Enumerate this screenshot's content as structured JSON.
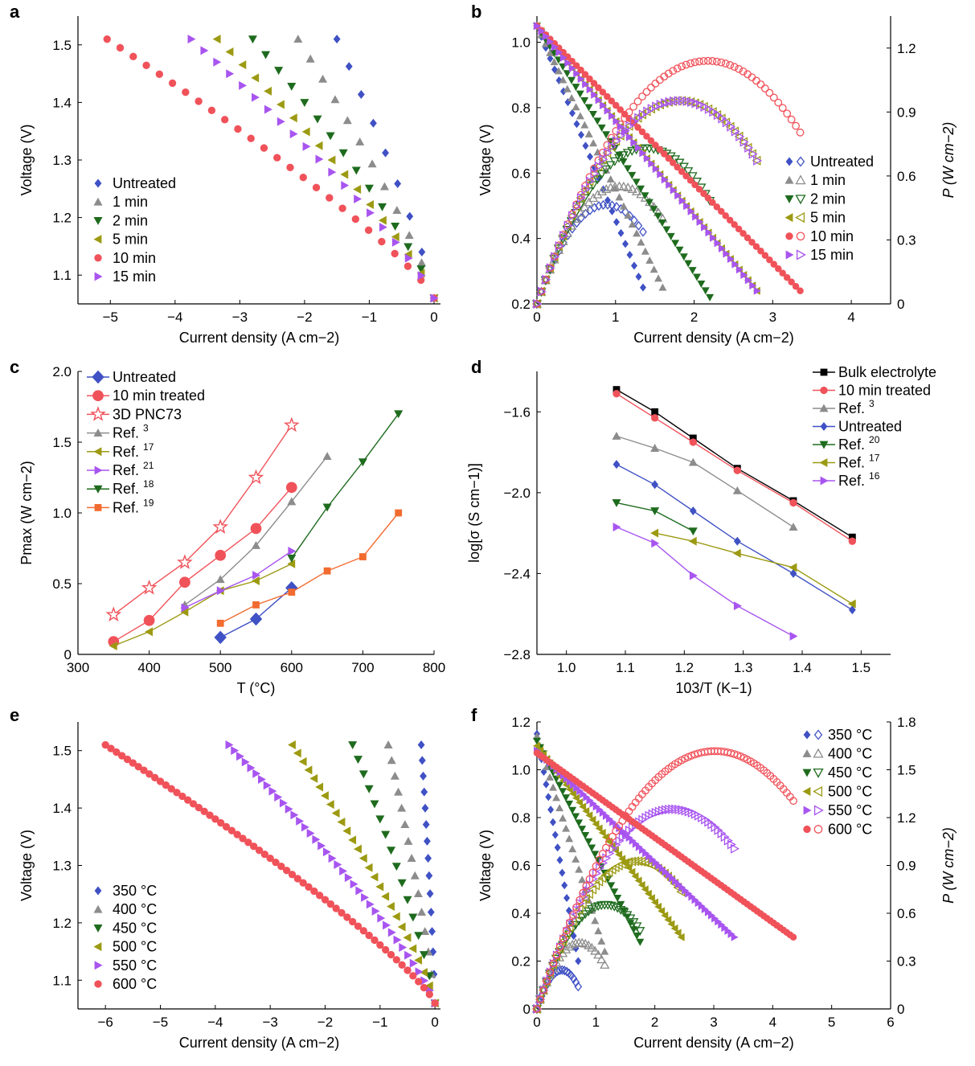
{
  "chart_data": [
    {
      "panel": "a",
      "type": "scatter",
      "xlabel": "Current density (A cm−2)",
      "ylabel": "Voltage (V)",
      "xlim": [
        -5.5,
        0.1
      ],
      "ylim": [
        1.05,
        1.55
      ],
      "xticks": [
        -5,
        -4,
        -3,
        -2,
        -1,
        0
      ],
      "yticks": [
        1.1,
        1.2,
        1.3,
        1.4,
        1.5
      ],
      "legend_position": "lower-left",
      "series": [
        {
          "name": "Untreated",
          "color": "#3f51c4",
          "marker": "diamond",
          "x_end": -1.5
        },
        {
          "name": "1 min",
          "color": "#8c8c8c",
          "marker": "triangle-up",
          "x_end": -2.1
        },
        {
          "name": "2 min",
          "color": "#1e6b1e",
          "marker": "triangle-down",
          "x_end": -2.8
        },
        {
          "name": "5 min",
          "color": "#9c9a12",
          "marker": "triangle-left",
          "x_end": -3.35
        },
        {
          "name": "10 min",
          "color": "#f0525a",
          "marker": "circle",
          "x_end": -5.05
        },
        {
          "name": "15 min",
          "color": "#a855f0",
          "marker": "triangle-right",
          "x_end": -3.75
        }
      ]
    },
    {
      "panel": "b",
      "type": "scatter",
      "xlabel": "Current density (A cm−2)",
      "ylabel": "Voltage (V)",
      "y2label": "P (W cm−2)",
      "xlim": [
        0,
        4.5
      ],
      "ylim": [
        0.2,
        1.08
      ],
      "y2lim": [
        0,
        1.35
      ],
      "xticks": [
        0,
        1,
        2,
        3,
        4
      ],
      "yticks": [
        0.2,
        0.4,
        0.6,
        0.8,
        1.0
      ],
      "y2ticks": [
        0,
        0.3,
        0.6,
        0.9,
        1.2
      ],
      "legend_position": "right",
      "series": [
        {
          "name": "Untreated",
          "color": "#3f51c4",
          "marker": "diamond",
          "ocv": 1.05,
          "v_end": 0.25,
          "x_end": 1.35
        },
        {
          "name": "1 min",
          "color": "#8c8c8c",
          "marker": "triangle-up",
          "ocv": 1.05,
          "v_end": 0.25,
          "x_end": 1.6
        },
        {
          "name": "2 min",
          "color": "#1e6b1e",
          "marker": "triangle-down",
          "ocv": 1.05,
          "v_end": 0.22,
          "x_end": 2.2
        },
        {
          "name": "5 min",
          "color": "#9c9a12",
          "marker": "triangle-left",
          "ocv": 1.05,
          "v_end": 0.24,
          "x_end": 2.8
        },
        {
          "name": "10 min",
          "color": "#f0525a",
          "marker": "circle",
          "ocv": 1.05,
          "v_end": 0.24,
          "x_end": 3.35
        },
        {
          "name": "15 min",
          "color": "#a855f0",
          "marker": "triangle-right",
          "ocv": 1.05,
          "v_end": 0.24,
          "x_end": 2.8
        }
      ]
    },
    {
      "panel": "c",
      "type": "line",
      "xlabel": "T (°C)",
      "ylabel": "Pmax (W cm−2)",
      "xlim": [
        300,
        800
      ],
      "ylim": [
        0,
        2.0
      ],
      "xticks": [
        300,
        400,
        500,
        600,
        700,
        800
      ],
      "yticks": [
        0,
        0.5,
        1.0,
        1.5,
        2.0
      ],
      "legend_position": "top-left",
      "series": [
        {
          "name": "Untreated",
          "ref": "",
          "color": "#3f51c4",
          "marker": "diamond-lg",
          "x": [
            500,
            550,
            600
          ],
          "y": [
            0.12,
            0.25,
            0.47
          ]
        },
        {
          "name": "10 min treated",
          "ref": "",
          "color": "#f0525a",
          "marker": "circle-lg",
          "x": [
            350,
            400,
            450,
            500,
            550,
            600
          ],
          "y": [
            0.09,
            0.24,
            0.51,
            0.7,
            0.89,
            1.18
          ]
        },
        {
          "name": "3D PNC73",
          "ref": "",
          "color": "#f0525a",
          "marker": "star-open",
          "x": [
            350,
            400,
            450,
            500,
            550,
            600
          ],
          "y": [
            0.28,
            0.47,
            0.65,
            0.9,
            1.25,
            1.62
          ]
        },
        {
          "name": "Ref. ",
          "ref": "3",
          "color": "#8c8c8c",
          "marker": "triangle-up",
          "x": [
            450,
            500,
            550,
            600,
            650
          ],
          "y": [
            0.35,
            0.53,
            0.77,
            1.08,
            1.4
          ]
        },
        {
          "name": "Ref. ",
          "ref": "17",
          "color": "#9c9a12",
          "marker": "triangle-left",
          "x": [
            350,
            400,
            450,
            500,
            550,
            600
          ],
          "y": [
            0.06,
            0.16,
            0.3,
            0.45,
            0.52,
            0.64
          ]
        },
        {
          "name": "Ref. ",
          "ref": "21",
          "color": "#a855f0",
          "marker": "triangle-right",
          "x": [
            450,
            500,
            550,
            600
          ],
          "y": [
            0.33,
            0.45,
            0.56,
            0.73
          ]
        },
        {
          "name": "Ref. ",
          "ref": "18",
          "color": "#1e6b1e",
          "marker": "triangle-down",
          "x": [
            600,
            650,
            700,
            750
          ],
          "y": [
            0.68,
            1.04,
            1.36,
            1.7
          ]
        },
        {
          "name": "Ref. ",
          "ref": "19",
          "color": "#f26b30",
          "marker": "square",
          "x": [
            500,
            550,
            600,
            650,
            700,
            750
          ],
          "y": [
            0.22,
            0.35,
            0.44,
            0.59,
            0.69,
            1.0
          ]
        }
      ]
    },
    {
      "panel": "d",
      "type": "line",
      "xlabel": "103/T (K−1)",
      "ylabel": "log[σ (S cm−1)]",
      "xlim": [
        0.95,
        1.55
      ],
      "ylim": [
        -2.8,
        -1.4
      ],
      "xticks": [
        1.0,
        1.1,
        1.2,
        1.3,
        1.4,
        1.5
      ],
      "yticks": [
        -2.8,
        -2.4,
        -2.0,
        -1.6
      ],
      "legend_position": "top-right",
      "series": [
        {
          "name": "Bulk electrolyte",
          "ref": "",
          "color": "#000000",
          "marker": "square",
          "x": [
            1.085,
            1.15,
            1.215,
            1.29,
            1.385,
            1.485
          ],
          "y": [
            -1.49,
            -1.6,
            -1.73,
            -1.88,
            -2.04,
            -2.22
          ]
        },
        {
          "name": "10 min treated",
          "ref": "",
          "color": "#f0525a",
          "marker": "circle",
          "x": [
            1.085,
            1.15,
            1.215,
            1.29,
            1.385,
            1.485
          ],
          "y": [
            -1.51,
            -1.63,
            -1.75,
            -1.89,
            -2.05,
            -2.24
          ]
        },
        {
          "name": "Ref. ",
          "ref": "3",
          "color": "#8c8c8c",
          "marker": "triangle-up",
          "x": [
            1.085,
            1.15,
            1.215,
            1.29,
            1.385
          ],
          "y": [
            -1.72,
            -1.78,
            -1.85,
            -1.99,
            -2.17
          ]
        },
        {
          "name": "Untreated",
          "ref": "",
          "color": "#3f51c4",
          "marker": "diamond",
          "x": [
            1.085,
            1.15,
            1.215,
            1.29,
            1.385,
            1.485
          ],
          "y": [
            -1.86,
            -1.96,
            -2.09,
            -2.24,
            -2.4,
            -2.58
          ]
        },
        {
          "name": "Ref. ",
          "ref": "20",
          "color": "#1e6b1e",
          "marker": "triangle-down",
          "x": [
            1.085,
            1.15,
            1.215
          ],
          "y": [
            -2.05,
            -2.09,
            -2.19
          ]
        },
        {
          "name": "Ref. ",
          "ref": "17",
          "color": "#9c9a12",
          "marker": "triangle-left",
          "x": [
            1.15,
            1.215,
            1.29,
            1.385,
            1.485
          ],
          "y": [
            -2.2,
            -2.24,
            -2.3,
            -2.37,
            -2.55
          ]
        },
        {
          "name": "Ref. ",
          "ref": "16",
          "color": "#a855f0",
          "marker": "triangle-right",
          "x": [
            1.085,
            1.15,
            1.215,
            1.29,
            1.385
          ],
          "y": [
            -2.17,
            -2.25,
            -2.41,
            -2.56,
            -2.71
          ]
        }
      ]
    },
    {
      "panel": "e",
      "type": "scatter",
      "xlabel": "Current density (A cm−2)",
      "ylabel": "Voltage (V)",
      "xlim": [
        -6.5,
        0.1
      ],
      "ylim": [
        1.05,
        1.55
      ],
      "xticks": [
        -6,
        -5,
        -4,
        -3,
        -2,
        -1,
        0
      ],
      "yticks": [
        1.1,
        1.2,
        1.3,
        1.4,
        1.5
      ],
      "legend_position": "lower-left",
      "series": [
        {
          "name": "350 °C",
          "color": "#3f51c4",
          "marker": "diamond",
          "x_end": -0.25
        },
        {
          "name": "400 °C",
          "color": "#8c8c8c",
          "marker": "triangle-up",
          "x_end": -0.85
        },
        {
          "name": "450 °C",
          "color": "#1e6b1e",
          "marker": "triangle-down",
          "x_end": -1.5
        },
        {
          "name": "500 °C",
          "color": "#9c9a12",
          "marker": "triangle-left",
          "x_end": -2.6
        },
        {
          "name": "550 °C",
          "color": "#a855f0",
          "marker": "triangle-right",
          "x_end": -3.75
        },
        {
          "name": "600 °C",
          "color": "#f0525a",
          "marker": "circle",
          "x_end": -6.0
        }
      ]
    },
    {
      "panel": "f",
      "type": "scatter",
      "xlabel": "Current density (A  cm−2)",
      "ylabel": "Voltage (V)",
      "y2label": "P (W cm−2)",
      "xlim": [
        0,
        6
      ],
      "ylim": [
        0,
        1.2
      ],
      "y2lim": [
        0,
        1.8
      ],
      "xticks": [
        0,
        1,
        2,
        3,
        4,
        5,
        6
      ],
      "yticks": [
        0,
        0.2,
        0.4,
        0.6,
        0.8,
        1.0,
        1.2
      ],
      "y2ticks": [
        0,
        0.3,
        0.6,
        0.9,
        1.2,
        1.5,
        1.8
      ],
      "legend_position": "top-right",
      "series": [
        {
          "name": "350 °C",
          "color": "#3f51c4",
          "marker": "diamond",
          "ocv": 1.15,
          "v_end": 0.2,
          "x_end": 0.7
        },
        {
          "name": "400 °C",
          "color": "#8c8c8c",
          "marker": "triangle-up",
          "ocv": 1.14,
          "v_end": 0.24,
          "x_end": 1.15
        },
        {
          "name": "450 °C",
          "color": "#1e6b1e",
          "marker": "triangle-down",
          "ocv": 1.12,
          "v_end": 0.28,
          "x_end": 1.75
        },
        {
          "name": "500 °C",
          "color": "#9c9a12",
          "marker": "triangle-left",
          "ocv": 1.1,
          "v_end": 0.3,
          "x_end": 2.45
        },
        {
          "name": "550 °C",
          "color": "#a855f0",
          "marker": "triangle-right",
          "ocv": 1.08,
          "v_end": 0.3,
          "x_end": 3.35
        },
        {
          "name": "600 °C",
          "color": "#f0525a",
          "marker": "circle",
          "ocv": 1.07,
          "v_end": 0.3,
          "x_end": 4.35
        }
      ]
    }
  ]
}
